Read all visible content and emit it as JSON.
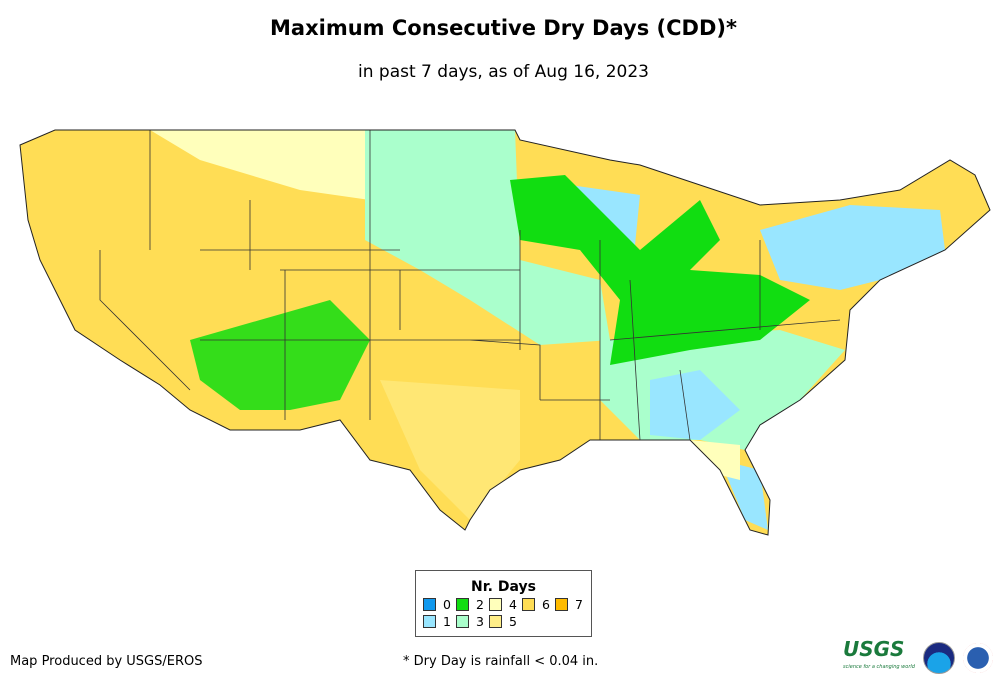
{
  "title": "Maximum Consecutive Dry Days (CDD)*",
  "subtitle": "in past 7 days, as of Aug 16, 2023",
  "legend": {
    "title": "Nr. Days",
    "items": [
      {
        "label": "0",
        "color": "#1199ee"
      },
      {
        "label": "1",
        "color": "#99e6ff"
      },
      {
        "label": "2",
        "color": "#11dd11"
      },
      {
        "label": "3",
        "color": "#aaffcc"
      },
      {
        "label": "4",
        "color": "#ffffbb"
      },
      {
        "label": "5",
        "color": "#ffee88"
      },
      {
        "label": "6",
        "color": "#ffdd55"
      },
      {
        "label": "7",
        "color": "#ffbb00"
      }
    ]
  },
  "credit": "Map Produced by USGS/EROS",
  "footnote": "* Dry Day is rainfall < 0.04 in.",
  "logos": {
    "usgs": "USGS",
    "usgs_tagline": "science for a changing world",
    "noaa": "noaa",
    "nws": "NATIONAL WEATHER SERVICE"
  }
}
